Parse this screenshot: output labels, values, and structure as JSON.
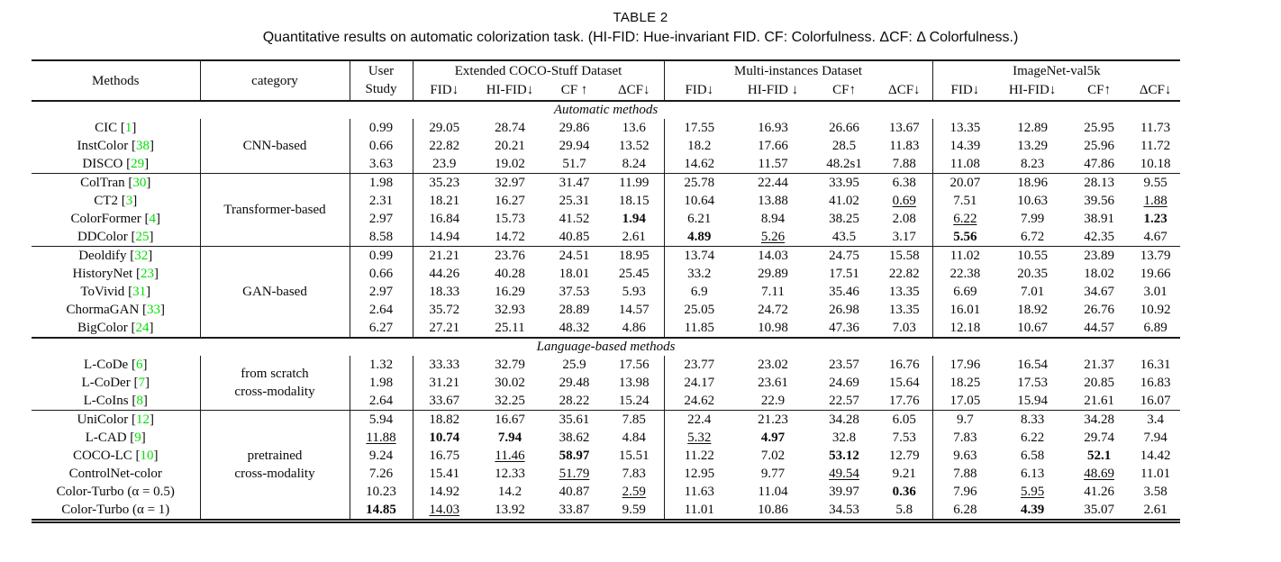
{
  "caption": {
    "label": "TABLE 2",
    "text": "Quantitative results on automatic colorization task. (HI-FID: Hue-invariant FID. CF: Colorfulness. ΔCF: Δ Colorfulness.)"
  },
  "colors": {
    "reference_green": "#00e000",
    "rule": "#1a1a1a"
  },
  "header": {
    "methods": "Methods",
    "category": "category",
    "user_study": [
      "User",
      "Study"
    ],
    "datasets": [
      {
        "title": "Extended COCO-Stuff Dataset",
        "cols": [
          "FID↓",
          "HI-FID↓",
          "CF ↑",
          "ΔCF↓"
        ]
      },
      {
        "title": "Multi-instances Dataset",
        "cols": [
          "FID↓",
          "HI-FID ↓",
          "CF↑",
          "ΔCF↓"
        ]
      },
      {
        "title": "ImageNet-val5k",
        "cols": [
          "FID↓",
          "HI-FID↓",
          "CF↑",
          "ΔCF↓"
        ]
      }
    ]
  },
  "table": {
    "sections": [
      {
        "banner": "Automatic methods",
        "groups": [
          {
            "category": [
              "CNN-based"
            ],
            "rows": [
              {
                "method": "CIC",
                "ref": "1",
                "values": [
                  "0.99",
                  "29.05",
                  "28.74",
                  "29.86",
                  "13.6",
                  "17.55",
                  "16.93",
                  "26.66",
                  "13.67",
                  "13.35",
                  "12.89",
                  "25.95",
                  "11.73"
                ]
              },
              {
                "method": "InstColor",
                "ref": "38",
                "values": [
                  "0.66",
                  "22.82",
                  "20.21",
                  "29.94",
                  "13.52",
                  "18.2",
                  "17.66",
                  "28.5",
                  "11.83",
                  "14.39",
                  "13.29",
                  "25.96",
                  "11.72"
                ]
              },
              {
                "method": "DISCO",
                "ref": "29",
                "values": [
                  "3.63",
                  "23.9",
                  "19.02",
                  "51.7",
                  "8.24",
                  "14.62",
                  "11.57",
                  "48.2s1",
                  "7.88",
                  "11.08",
                  "8.23",
                  "47.86",
                  "10.18"
                ]
              }
            ]
          },
          {
            "category": [
              "Transformer-based"
            ],
            "rows": [
              {
                "method": "ColTran",
                "ref": "30",
                "values": [
                  "1.98",
                  "35.23",
                  "32.97",
                  "31.47",
                  "11.99",
                  "25.78",
                  "22.44",
                  "33.95",
                  "6.38",
                  "20.07",
                  "18.96",
                  "28.13",
                  "9.55"
                ]
              },
              {
                "method": "CT2",
                "ref": "3",
                "values": [
                  "2.31",
                  "18.21",
                  "16.27",
                  "25.31",
                  "18.15",
                  "10.64",
                  "13.88",
                  "41.02",
                  "__0.69__",
                  "7.51",
                  "10.63",
                  "39.56",
                  "__1.88__"
                ]
              },
              {
                "method": "ColorFormer",
                "ref": "4",
                "values": [
                  "2.97",
                  "16.84",
                  "15.73",
                  "41.52",
                  "**1.94**",
                  "6.21",
                  "8.94",
                  "38.25",
                  "2.08",
                  "__6.22__",
                  "7.99",
                  "38.91",
                  "**1.23**"
                ]
              },
              {
                "method": "DDColor",
                "ref": "25",
                "values": [
                  "8.58",
                  "14.94",
                  "14.72",
                  "40.85",
                  "2.61",
                  "**4.89**",
                  "__5.26__",
                  "43.5",
                  "3.17",
                  "**5.56**",
                  "6.72",
                  "42.35",
                  "4.67"
                ]
              }
            ]
          },
          {
            "category": [
              "GAN-based"
            ],
            "rows": [
              {
                "method": "Deoldify",
                "ref": "32",
                "values": [
                  "0.99",
                  "21.21",
                  "23.76",
                  "24.51",
                  "18.95",
                  "13.74",
                  "14.03",
                  "24.75",
                  "15.58",
                  "11.02",
                  "10.55",
                  "23.89",
                  "13.79"
                ]
              },
              {
                "method": "HistoryNet",
                "ref": "23",
                "values": [
                  "0.66",
                  "44.26",
                  "40.28",
                  "18.01",
                  "25.45",
                  "33.2",
                  "29.89",
                  "17.51",
                  "22.82",
                  "22.38",
                  "20.35",
                  "18.02",
                  "19.66"
                ]
              },
              {
                "method": "ToVivid",
                "ref": "31",
                "values": [
                  "2.97",
                  "18.33",
                  "16.29",
                  "37.53",
                  "5.93",
                  "6.9",
                  "7.11",
                  "35.46",
                  "13.35",
                  "6.69",
                  "7.01",
                  "34.67",
                  "3.01"
                ]
              },
              {
                "method": "ChormaGAN",
                "ref": "33",
                "values": [
                  "2.64",
                  "35.72",
                  "32.93",
                  "28.89",
                  "14.57",
                  "25.05",
                  "24.72",
                  "26.98",
                  "13.35",
                  "16.01",
                  "18.92",
                  "26.76",
                  "10.92"
                ]
              },
              {
                "method": "BigColor",
                "ref": "24",
                "values": [
                  "6.27",
                  "27.21",
                  "25.11",
                  "48.32",
                  "4.86",
                  "11.85",
                  "10.98",
                  "47.36",
                  "7.03",
                  "12.18",
                  "10.67",
                  "44.57",
                  "6.89"
                ]
              }
            ]
          }
        ]
      },
      {
        "banner": "Language-based methods",
        "groups": [
          {
            "category": [
              "from scratch",
              "cross-modality"
            ],
            "rows": [
              {
                "method": "L-CoDe",
                "ref": "6",
                "values": [
                  "1.32",
                  "33.33",
                  "32.79",
                  "25.9",
                  "17.56",
                  "23.77",
                  "23.02",
                  "23.57",
                  "16.76",
                  "17.96",
                  "16.54",
                  "21.37",
                  "16.31"
                ]
              },
              {
                "method": "L-CoDer",
                "ref": "7",
                "values": [
                  "1.98",
                  "31.21",
                  "30.02",
                  "29.48",
                  "13.98",
                  "24.17",
                  "23.61",
                  "24.69",
                  "15.64",
                  "18.25",
                  "17.53",
                  "20.85",
                  "16.83"
                ]
              },
              {
                "method": "L-CoIns",
                "ref": "8",
                "values": [
                  "2.64",
                  "33.67",
                  "32.25",
                  "28.22",
                  "15.24",
                  "24.62",
                  "22.9",
                  "22.57",
                  "17.76",
                  "17.05",
                  "15.94",
                  "21.61",
                  "16.07"
                ]
              }
            ]
          },
          {
            "category": [
              "pretrained",
              "cross-modality"
            ],
            "rows": [
              {
                "method": "UniColor",
                "ref": "12",
                "values": [
                  "5.94",
                  "18.82",
                  "16.67",
                  "35.61",
                  "7.85",
                  "22.4",
                  "21.23",
                  "34.28",
                  "6.05",
                  "9.7",
                  "8.33",
                  "34.28",
                  "3.4"
                ]
              },
              {
                "method": "L-CAD",
                "ref": "9",
                "values": [
                  "__11.88__",
                  "**10.74**",
                  "**7.94**",
                  "38.62",
                  "4.84",
                  "__5.32__",
                  "**4.97**",
                  "32.8",
                  "7.53",
                  "7.83",
                  "6.22",
                  "29.74",
                  "7.94"
                ]
              },
              {
                "method": "COCO-LC",
                "ref": "10",
                "values": [
                  "9.24",
                  "16.75",
                  "__11.46__",
                  "**58.97**",
                  "15.51",
                  "11.22",
                  "7.02",
                  "**53.12**",
                  "12.79",
                  "9.63",
                  "6.58",
                  "**52.1**",
                  "14.42"
                ]
              },
              {
                "method": "ControlNet-color",
                "ref": null,
                "values": [
                  "7.26",
                  "15.41",
                  "12.33",
                  "__51.79__",
                  "7.83",
                  "12.95",
                  "9.77",
                  "__49.54__",
                  "9.21",
                  "7.88",
                  "6.13",
                  "__48.69__",
                  "11.01"
                ]
              },
              {
                "method": "Color-Turbo (α = 0.5)",
                "ref": null,
                "values": [
                  "10.23",
                  "14.92",
                  "14.2",
                  "40.87",
                  "__2.59__",
                  "11.63",
                  "11.04",
                  "39.97",
                  "**0.36**",
                  "7.96",
                  "__5.95__",
                  "41.26",
                  "3.58"
                ]
              },
              {
                "method": "Color-Turbo (α = 1)",
                "ref": null,
                "values": [
                  "**14.85**",
                  "__14.03__",
                  "13.92",
                  "33.87",
                  "9.59",
                  "11.01",
                  "10.86",
                  "34.53",
                  "5.8",
                  "6.28",
                  "**4.39**",
                  "35.07",
                  "2.61"
                ]
              }
            ]
          }
        ]
      }
    ]
  }
}
